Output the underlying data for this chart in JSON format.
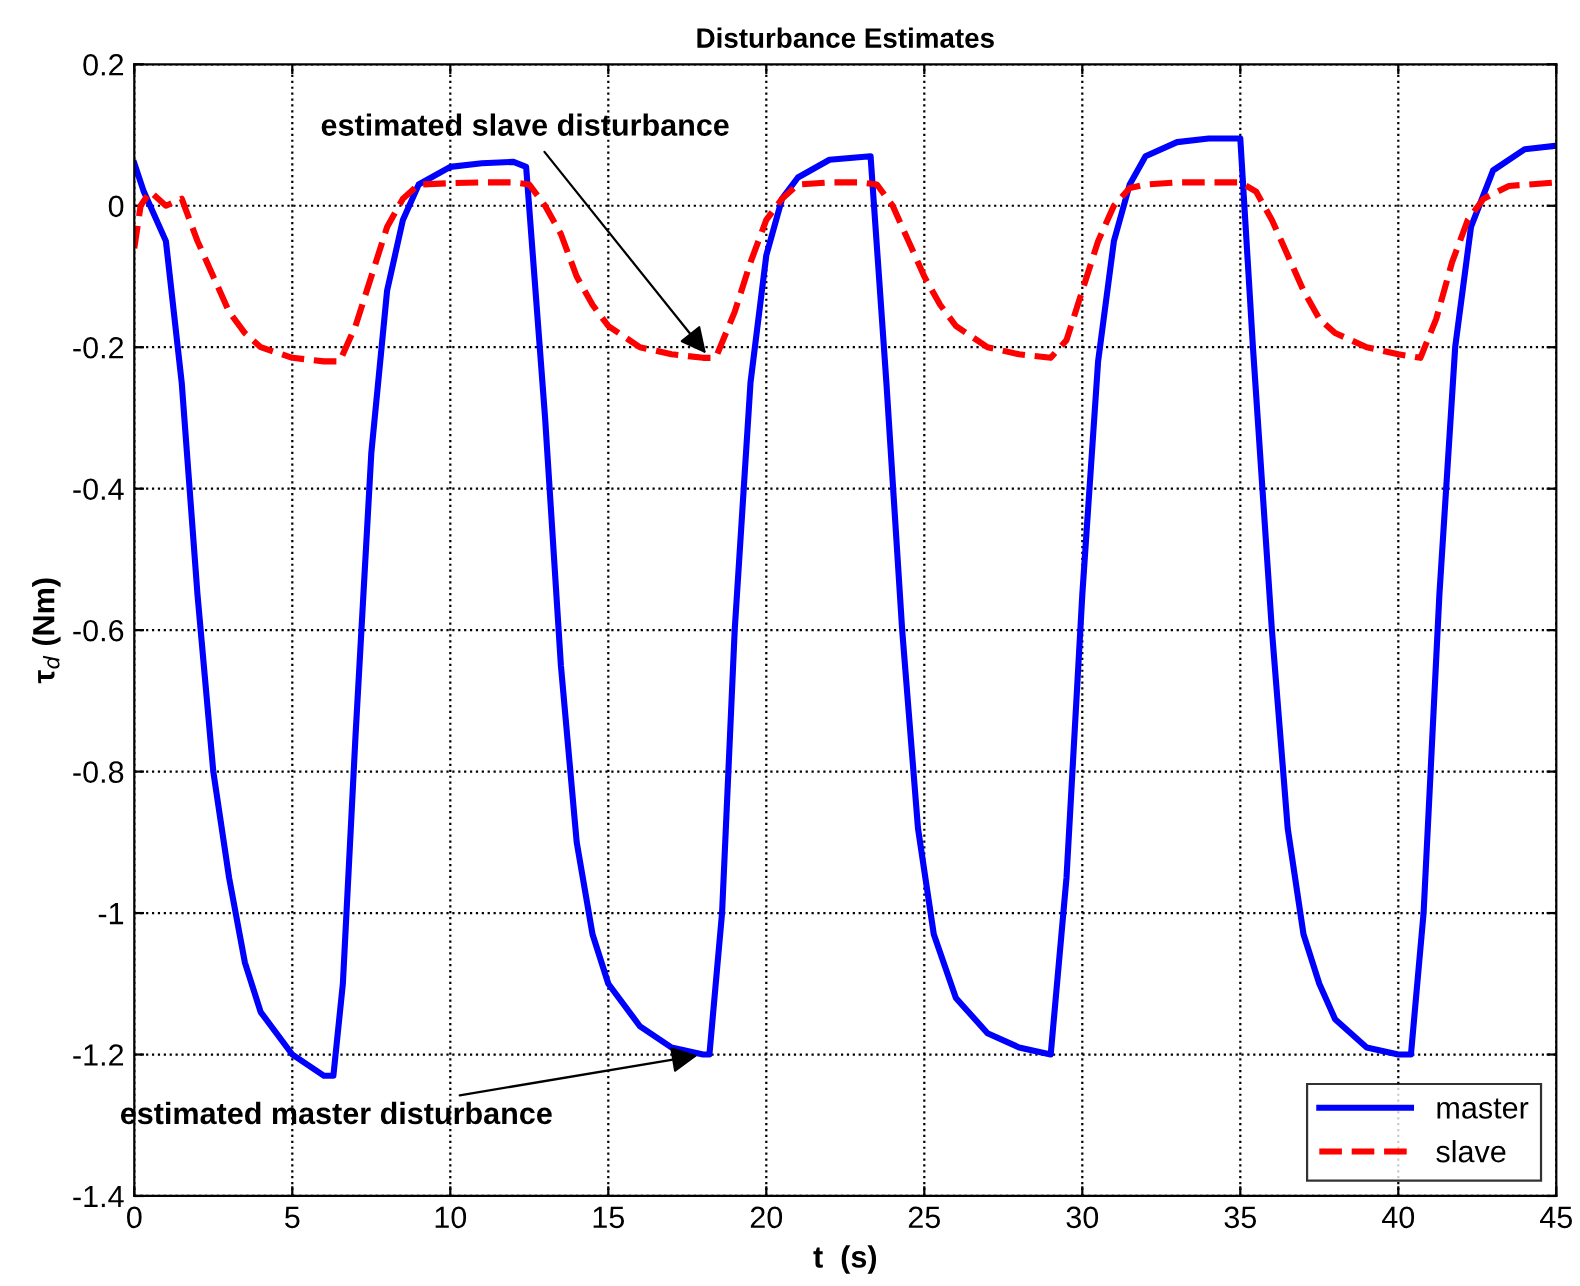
{
  "chart_data": {
    "type": "line",
    "title": "Disturbance Estimates",
    "xlabel": "t  (s)",
    "ylabel": "τ$_{d}$ (Nm)",
    "xlim": [
      0,
      45
    ],
    "xticks": [
      0,
      5,
      10,
      15,
      20,
      25,
      30,
      35,
      40,
      45
    ],
    "ylim": [
      -1.4,
      0.2
    ],
    "yticks": [
      -1.4,
      -1.2,
      -1,
      -0.8,
      -0.6,
      -0.4,
      -0.2,
      0,
      0.2
    ],
    "grid": true,
    "legend": "bottom right",
    "annotations": [
      {
        "text": "estimated slave disturbance",
        "x": 18.2,
        "y": -0.215
      },
      {
        "text": "estimated master disturbance",
        "x": 18.0,
        "y": -1.2
      }
    ],
    "series": [
      {
        "name": "master",
        "color": "#0000ff",
        "line_style": "solid",
        "x": [
          0,
          0.3,
          1,
          1.5,
          2,
          2.5,
          3,
          3.5,
          4,
          5,
          6,
          6.3,
          6.6,
          7,
          7.5,
          8,
          8.5,
          9,
          10,
          11,
          12,
          12.4,
          13,
          13.5,
          14,
          14.5,
          15,
          16,
          17,
          18,
          18.2,
          18.6,
          19,
          19.5,
          20,
          20.5,
          21,
          22,
          23.3,
          23.8,
          24.3,
          24.8,
          25.3,
          26,
          27,
          28,
          29,
          29.5,
          30,
          30.5,
          31,
          31.5,
          32,
          33,
          34,
          35,
          35.4,
          36,
          36.5,
          37,
          37.5,
          38,
          39,
          40,
          40.4,
          40.8,
          41.3,
          41.8,
          42.3,
          43,
          44,
          45
        ],
        "values": [
          0.06,
          0.02,
          -0.05,
          -0.25,
          -0.55,
          -0.8,
          -0.95,
          -1.07,
          -1.14,
          -1.2,
          -1.23,
          -1.23,
          -1.1,
          -0.75,
          -0.35,
          -0.12,
          -0.02,
          0.03,
          0.055,
          0.06,
          0.062,
          0.055,
          -0.3,
          -0.65,
          -0.9,
          -1.03,
          -1.1,
          -1.16,
          -1.19,
          -1.2,
          -1.2,
          -1.0,
          -0.6,
          -0.25,
          -0.07,
          0.01,
          0.04,
          0.065,
          0.07,
          -0.25,
          -0.6,
          -0.88,
          -1.03,
          -1.12,
          -1.17,
          -1.19,
          -1.2,
          -0.95,
          -0.55,
          -0.22,
          -0.05,
          0.03,
          0.07,
          0.09,
          0.095,
          0.095,
          -0.2,
          -0.6,
          -0.88,
          -1.03,
          -1.1,
          -1.15,
          -1.19,
          -1.2,
          -1.2,
          -1.0,
          -0.55,
          -0.2,
          -0.03,
          0.05,
          0.08,
          0.085
        ]
      },
      {
        "name": "slave",
        "color": "#ff0000",
        "line_style": "dashed",
        "x": [
          0,
          0.2,
          0.5,
          1,
          1.5,
          2,
          2.5,
          3,
          3.5,
          4,
          5,
          6,
          6.5,
          7,
          7.5,
          8,
          8.5,
          9,
          10,
          11,
          12,
          12.5,
          13,
          13.5,
          14,
          14.5,
          15,
          16,
          17,
          18,
          18.4,
          19,
          19.5,
          20,
          20.5,
          21,
          22,
          23,
          23.5,
          24,
          24.5,
          25,
          25.5,
          26,
          27,
          28,
          29,
          29.5,
          30,
          30.5,
          31,
          31.5,
          32,
          33,
          35,
          35.5,
          36,
          36.5,
          37,
          37.5,
          38,
          39,
          40,
          40.7,
          41.2,
          41.7,
          42.2,
          42.7,
          43.5,
          45
        ],
        "values": [
          -0.06,
          0.0,
          0.02,
          0.0,
          0.01,
          -0.05,
          -0.1,
          -0.15,
          -0.18,
          -0.2,
          -0.215,
          -0.22,
          -0.22,
          -0.17,
          -0.1,
          -0.03,
          0.01,
          0.03,
          0.032,
          0.033,
          0.033,
          0.03,
          0.0,
          -0.04,
          -0.1,
          -0.14,
          -0.17,
          -0.2,
          -0.21,
          -0.215,
          -0.215,
          -0.15,
          -0.08,
          -0.02,
          0.01,
          0.03,
          0.033,
          0.033,
          0.03,
          0.0,
          -0.05,
          -0.1,
          -0.14,
          -0.17,
          -0.2,
          -0.21,
          -0.215,
          -0.19,
          -0.12,
          -0.05,
          0.0,
          0.025,
          0.03,
          0.033,
          0.033,
          0.02,
          -0.02,
          -0.07,
          -0.12,
          -0.16,
          -0.18,
          -0.2,
          -0.21,
          -0.215,
          -0.16,
          -0.08,
          -0.02,
          0.01,
          0.028,
          0.033
        ]
      }
    ]
  }
}
